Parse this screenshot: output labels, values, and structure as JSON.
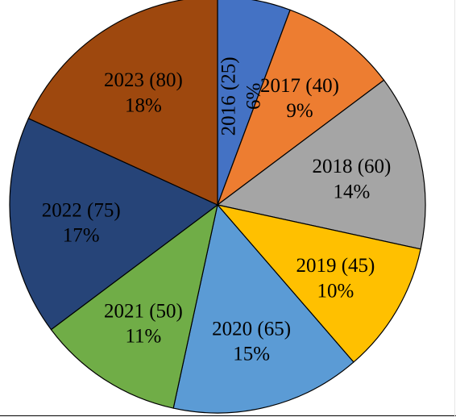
{
  "chart_data": {
    "type": "pie",
    "title": "",
    "slices": [
      {
        "category": "2016",
        "value": 25,
        "percent_label": "6%",
        "color": "#4472C4"
      },
      {
        "category": "2017",
        "value": 40,
        "percent_label": "9%",
        "color": "#ED7D31"
      },
      {
        "category": "2018",
        "value": 60,
        "percent_label": "14%",
        "color": "#A5A5A5"
      },
      {
        "category": "2019",
        "value": 45,
        "percent_label": "10%",
        "color": "#FFC000"
      },
      {
        "category": "2020",
        "value": 65,
        "percent_label": "15%",
        "color": "#5B9BD5"
      },
      {
        "category": "2021",
        "value": 50,
        "percent_label": "11%",
        "color": "#70AD47"
      },
      {
        "category": "2022",
        "value": 75,
        "percent_label": "17%",
        "color": "#264478"
      },
      {
        "category": "2023",
        "value": 80,
        "percent_label": "18%",
        "color": "#9E480E"
      }
    ],
    "legend": "none",
    "start_angle": "12 o'clock",
    "direction": "clockwise"
  }
}
